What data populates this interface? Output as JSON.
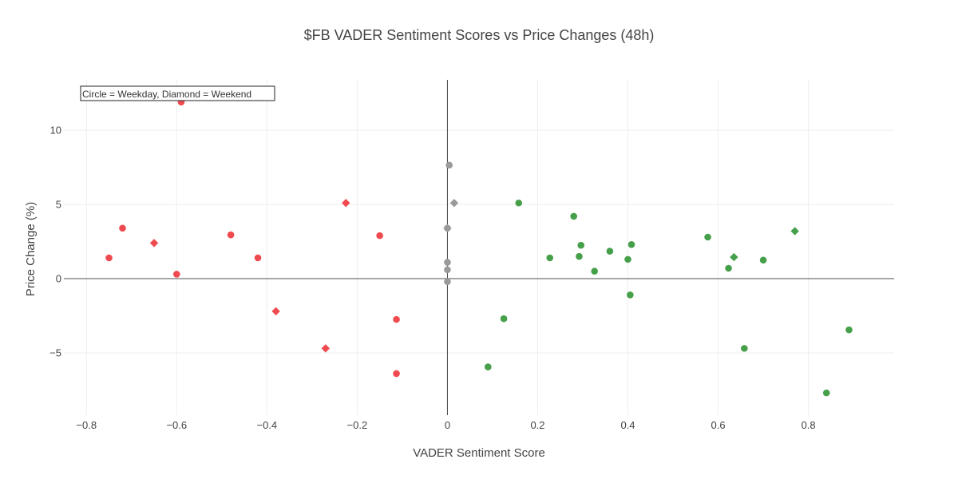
{
  "chart_data": {
    "type": "scatter",
    "title": "$FB VADER Sentiment Scores vs Price Changes (48h)",
    "xlabel": "VADER Sentiment Score",
    "ylabel": "Price Change (%)",
    "xlim": [
      -0.85,
      0.99
    ],
    "ylim": [
      -9.2,
      13.4
    ],
    "x_ticks": [
      -0.8,
      -0.6,
      -0.4,
      -0.2,
      0,
      0.2,
      0.4,
      0.6,
      0.8
    ],
    "x_tick_labels": [
      "−0.8",
      "−0.6",
      "−0.4",
      "−0.2",
      "0",
      "0.2",
      "0.4",
      "0.6",
      "0.8"
    ],
    "y_ticks": [
      -5,
      0,
      5,
      10
    ],
    "y_tick_labels": [
      "−5",
      "0",
      "5",
      "10"
    ],
    "grid": true,
    "annotation": "Circle = Weekday, Diamond = Weekend",
    "colors": {
      "negative": "#ef4a4f",
      "neutral": "#9a9a9a",
      "positive": "#46a04a"
    },
    "points": [
      {
        "x": -0.75,
        "y": 1.4,
        "sentiment": "negative",
        "day": "weekday"
      },
      {
        "x": -0.72,
        "y": 3.4,
        "sentiment": "negative",
        "day": "weekday"
      },
      {
        "x": -0.65,
        "y": 2.4,
        "sentiment": "negative",
        "day": "weekend"
      },
      {
        "x": -0.6,
        "y": 0.3,
        "sentiment": "negative",
        "day": "weekday"
      },
      {
        "x": -0.59,
        "y": 11.9,
        "sentiment": "negative",
        "day": "weekday"
      },
      {
        "x": -0.48,
        "y": 2.95,
        "sentiment": "negative",
        "day": "weekday"
      },
      {
        "x": -0.42,
        "y": 1.4,
        "sentiment": "negative",
        "day": "weekday"
      },
      {
        "x": -0.38,
        "y": -2.2,
        "sentiment": "negative",
        "day": "weekend"
      },
      {
        "x": -0.27,
        "y": -4.7,
        "sentiment": "negative",
        "day": "weekend"
      },
      {
        "x": -0.225,
        "y": 5.1,
        "sentiment": "negative",
        "day": "weekend"
      },
      {
        "x": -0.15,
        "y": 2.9,
        "sentiment": "negative",
        "day": "weekday"
      },
      {
        "x": -0.113,
        "y": -2.75,
        "sentiment": "negative",
        "day": "weekday"
      },
      {
        "x": -0.113,
        "y": -6.4,
        "sentiment": "negative",
        "day": "weekday"
      },
      {
        "x": 0.0,
        "y": 3.4,
        "sentiment": "neutral",
        "day": "weekend"
      },
      {
        "x": 0.0,
        "y": 3.4,
        "sentiment": "neutral",
        "day": "weekday"
      },
      {
        "x": 0.0,
        "y": 1.1,
        "sentiment": "neutral",
        "day": "weekday"
      },
      {
        "x": 0.0,
        "y": 0.6,
        "sentiment": "neutral",
        "day": "weekday"
      },
      {
        "x": 0.0,
        "y": -0.2,
        "sentiment": "neutral",
        "day": "weekday"
      },
      {
        "x": 0.004,
        "y": 7.65,
        "sentiment": "neutral",
        "day": "weekday"
      },
      {
        "x": 0.015,
        "y": 5.1,
        "sentiment": "neutral",
        "day": "weekend"
      },
      {
        "x": 0.09,
        "y": -5.95,
        "sentiment": "positive",
        "day": "weekday"
      },
      {
        "x": 0.125,
        "y": -2.7,
        "sentiment": "positive",
        "day": "weekday"
      },
      {
        "x": 0.158,
        "y": 5.1,
        "sentiment": "positive",
        "day": "weekday"
      },
      {
        "x": 0.227,
        "y": 1.4,
        "sentiment": "positive",
        "day": "weekday"
      },
      {
        "x": 0.28,
        "y": 4.2,
        "sentiment": "positive",
        "day": "weekday"
      },
      {
        "x": 0.292,
        "y": 1.5,
        "sentiment": "positive",
        "day": "weekday"
      },
      {
        "x": 0.296,
        "y": 2.25,
        "sentiment": "positive",
        "day": "weekday"
      },
      {
        "x": 0.326,
        "y": 0.5,
        "sentiment": "positive",
        "day": "weekday"
      },
      {
        "x": 0.36,
        "y": 1.85,
        "sentiment": "positive",
        "day": "weekday"
      },
      {
        "x": 0.4,
        "y": 1.3,
        "sentiment": "positive",
        "day": "weekday"
      },
      {
        "x": 0.405,
        "y": -1.1,
        "sentiment": "positive",
        "day": "weekday"
      },
      {
        "x": 0.408,
        "y": 2.3,
        "sentiment": "positive",
        "day": "weekday"
      },
      {
        "x": 0.577,
        "y": 2.8,
        "sentiment": "positive",
        "day": "weekday"
      },
      {
        "x": 0.623,
        "y": 0.7,
        "sentiment": "positive",
        "day": "weekday"
      },
      {
        "x": 0.635,
        "y": 1.45,
        "sentiment": "positive",
        "day": "weekend"
      },
      {
        "x": 0.658,
        "y": -4.7,
        "sentiment": "positive",
        "day": "weekday"
      },
      {
        "x": 0.7,
        "y": 1.25,
        "sentiment": "positive",
        "day": "weekday"
      },
      {
        "x": 0.77,
        "y": 3.2,
        "sentiment": "positive",
        "day": "weekend"
      },
      {
        "x": 0.84,
        "y": -7.7,
        "sentiment": "positive",
        "day": "weekday"
      },
      {
        "x": 0.89,
        "y": -3.45,
        "sentiment": "positive",
        "day": "weekday"
      }
    ]
  }
}
